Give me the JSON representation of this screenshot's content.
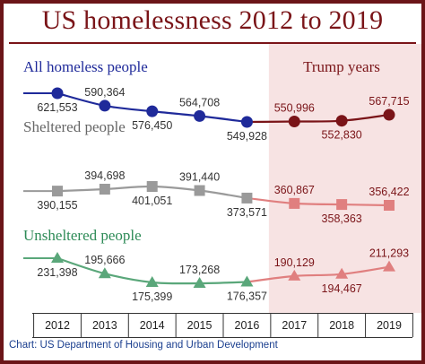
{
  "title": "US homelessness 2012 to 2019",
  "source": "Chart: US Department of Housing and Urban Development",
  "colors": {
    "frame": "#6b1518",
    "title": "#7a1418",
    "shade": "#f7e3e3",
    "all_pre": "#1f2a9a",
    "all_post": "#7a1418",
    "sheltered_pre": "#9a9a9a",
    "sheltered_post": "#e07f7f",
    "unsheltered_pre": "#5aa77a",
    "unsheltered_post": "#e07f7f",
    "unsheltered_label": "#2e8b57",
    "sheltered_label": "#666666",
    "all_label": "#1f2a9a"
  },
  "chart_data": {
    "type": "line",
    "categories": [
      "2012",
      "2013",
      "2014",
      "2015",
      "2016",
      "2017",
      "2018",
      "2019"
    ],
    "shaded_region": {
      "label": "Trump years",
      "from": "2017",
      "to": "2019"
    },
    "series": [
      {
        "name": "All homeless people",
        "marker": "circle",
        "values": [
          621553,
          590364,
          576450,
          564708,
          549928,
          550996,
          552830,
          567715
        ],
        "labels": [
          "621,553",
          "590,364",
          "576,450",
          "564,708",
          "549,928",
          "550,996",
          "552,830",
          "567,715"
        ],
        "label_positions": [
          "below",
          "above",
          "below",
          "above",
          "below",
          "above",
          "below",
          "above"
        ]
      },
      {
        "name": "Sheltered people",
        "marker": "square",
        "values": [
          390155,
          394698,
          401051,
          391440,
          373571,
          360867,
          358363,
          356422
        ],
        "labels": [
          "390,155",
          "394,698",
          "401,051",
          "391,440",
          "373,571",
          "360,867",
          "358,363",
          "356,422"
        ],
        "label_positions": [
          "below",
          "above",
          "below",
          "above",
          "below",
          "above",
          "below",
          "above"
        ]
      },
      {
        "name": "Unsheltered people",
        "marker": "triangle",
        "values": [
          231398,
          195666,
          175399,
          173268,
          176357,
          190129,
          194467,
          211293
        ],
        "labels": [
          "231,398",
          "195,666",
          "175,399",
          "173,268",
          "176,357",
          "190,129",
          "194,467",
          "211,293"
        ],
        "label_positions": [
          "below",
          "above",
          "below",
          "above",
          "below",
          "above",
          "below",
          "above"
        ]
      }
    ]
  }
}
